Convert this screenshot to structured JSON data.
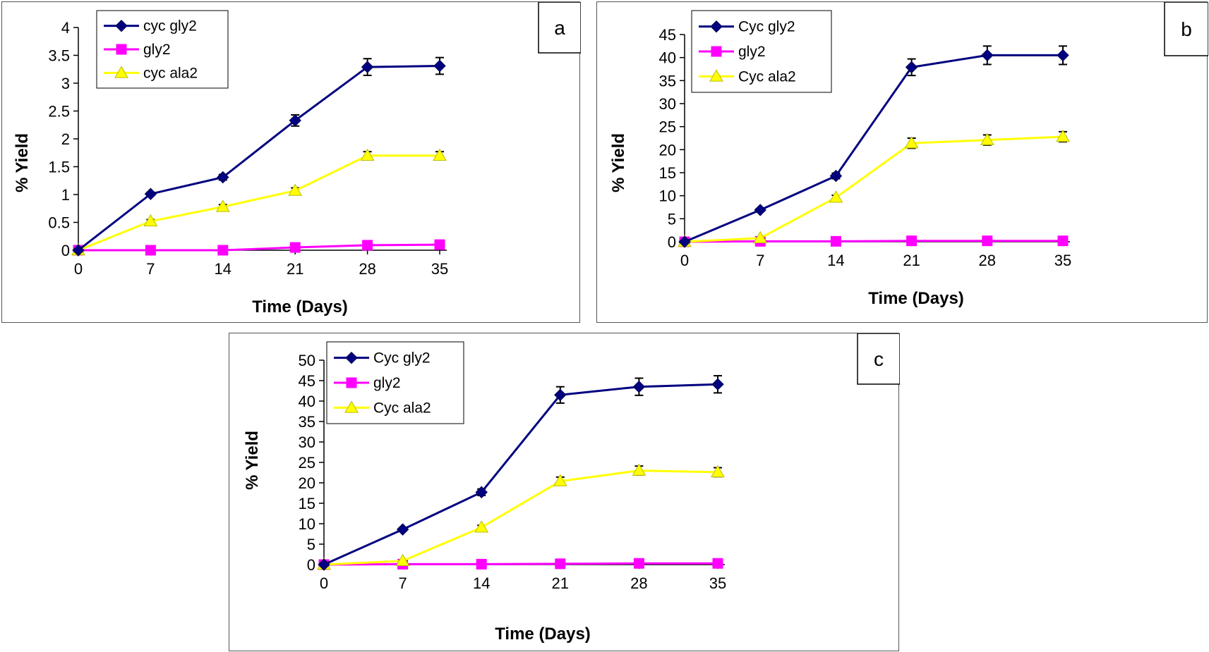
{
  "chart_data": [
    {
      "type": "line",
      "panel_label": "a",
      "x": [
        0,
        7,
        14,
        21,
        28,
        35
      ],
      "xlabel": "Time (Days)",
      "ylabel": "% Yield",
      "ylim": [
        0,
        4
      ],
      "yticks": [
        "0",
        "0.5",
        "1",
        "1.5",
        "2",
        "2.5",
        "3",
        "3.5",
        "4"
      ],
      "ytick_values": [
        0,
        0.5,
        1,
        1.5,
        2,
        2.5,
        3,
        3.5,
        4
      ],
      "xticks": [
        "0",
        "7",
        "14",
        "21",
        "28",
        "35"
      ],
      "grid": false,
      "legend_position": "top-left",
      "series": [
        {
          "name": "cyc gly2",
          "color": "#000080",
          "marker": "diamond",
          "values": [
            0,
            1.01,
            1.31,
            2.33,
            3.29,
            3.31
          ],
          "errors": [
            0,
            0.03,
            0.05,
            0.1,
            0.15,
            0.15
          ]
        },
        {
          "name": "gly2",
          "color": "#ff00ff",
          "marker": "square",
          "values": [
            0,
            0,
            0,
            0.05,
            0.09,
            0.1
          ],
          "errors": [
            0,
            0,
            0,
            0,
            0,
            0
          ]
        },
        {
          "name": "cyc ala2",
          "color": "#ffff00",
          "marker": "triangle",
          "values": [
            0,
            0.52,
            0.78,
            1.07,
            1.7,
            1.7
          ],
          "errors": [
            0,
            0.03,
            0.04,
            0.05,
            0.07,
            0.07
          ]
        }
      ]
    },
    {
      "type": "line",
      "panel_label": "b",
      "x": [
        0,
        7,
        14,
        21,
        28,
        35
      ],
      "xlabel": "Time (Days)",
      "ylabel": "% Yield",
      "ylim": [
        0,
        45
      ],
      "yticks": [
        "0",
        "5",
        "10",
        "15",
        "20",
        "25",
        "30",
        "35",
        "40",
        "45"
      ],
      "ytick_values": [
        0,
        5,
        10,
        15,
        20,
        25,
        30,
        35,
        40,
        45
      ],
      "xticks": [
        "0",
        "7",
        "14",
        "21",
        "28",
        "35"
      ],
      "grid": false,
      "legend_position": "top-left",
      "series": [
        {
          "name": "Cyc gly2",
          "color": "#000080",
          "marker": "diamond",
          "values": [
            0,
            6.9,
            14.3,
            37.9,
            40.5,
            40.5
          ],
          "errors": [
            0,
            0.3,
            0.6,
            1.8,
            2.0,
            2.0
          ]
        },
        {
          "name": "gly2",
          "color": "#ff00ff",
          "marker": "square",
          "values": [
            0,
            0.1,
            0.1,
            0.2,
            0.2,
            0.2
          ],
          "errors": [
            0,
            0,
            0,
            0,
            0,
            0
          ]
        },
        {
          "name": "Cyc ala2",
          "color": "#ffff00",
          "marker": "triangle",
          "values": [
            0,
            0.8,
            9.6,
            21.4,
            22.1,
            22.8
          ],
          "errors": [
            0,
            0.1,
            0.5,
            1.1,
            1.1,
            1.1
          ]
        }
      ]
    },
    {
      "type": "line",
      "panel_label": "c",
      "x": [
        0,
        7,
        14,
        21,
        28,
        35
      ],
      "xlabel": "Time (Days)",
      "ylabel": "% Yield",
      "ylim": [
        0,
        50
      ],
      "yticks": [
        "0",
        "5",
        "10",
        "15",
        "20",
        "25",
        "30",
        "35",
        "40",
        "45",
        "50"
      ],
      "ytick_values": [
        0,
        5,
        10,
        15,
        20,
        25,
        30,
        35,
        40,
        45,
        50
      ],
      "xticks": [
        "0",
        "7",
        "14",
        "21",
        "28",
        "35"
      ],
      "grid": false,
      "legend_position": "top-left",
      "series": [
        {
          "name": "Cyc gly2",
          "color": "#000080",
          "marker": "diamond",
          "values": [
            0,
            8.6,
            17.7,
            41.5,
            43.5,
            44.1
          ],
          "errors": [
            0,
            0.4,
            0.8,
            2.0,
            2.1,
            2.1
          ]
        },
        {
          "name": "gly2",
          "color": "#ff00ff",
          "marker": "square",
          "values": [
            0,
            0.1,
            0.1,
            0.2,
            0.3,
            0.3
          ],
          "errors": [
            0,
            0,
            0,
            0,
            0,
            0
          ]
        },
        {
          "name": "Cyc ala2",
          "color": "#ffff00",
          "marker": "triangle",
          "values": [
            0,
            0.9,
            9.1,
            20.4,
            23.0,
            22.6
          ],
          "errors": [
            0,
            0.1,
            0.5,
            1.0,
            1.1,
            1.1
          ]
        }
      ]
    }
  ]
}
